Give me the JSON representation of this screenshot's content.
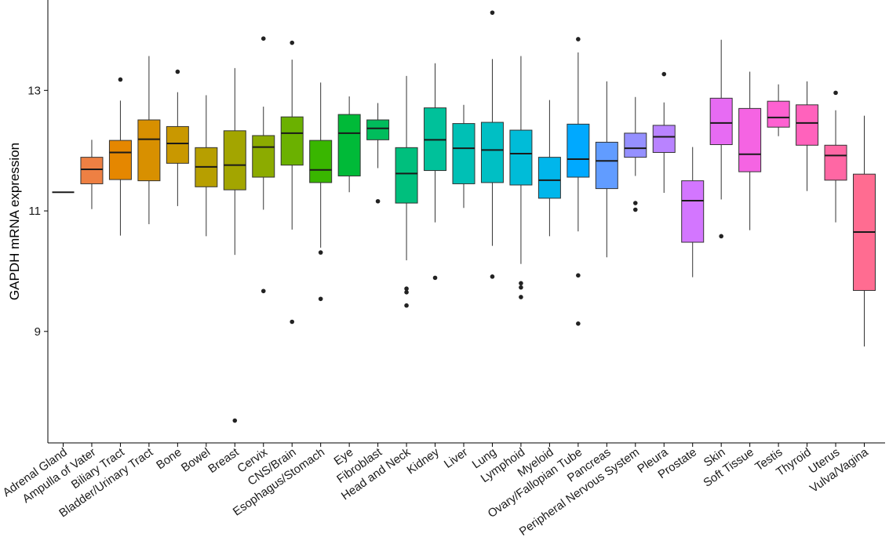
{
  "chart_data": {
    "type": "boxplot",
    "title": "",
    "xlabel": "",
    "ylabel": "GAPDH mRNA expression",
    "ylim": [
      7.15,
      14.5
    ],
    "yticks": [
      9,
      11,
      13
    ],
    "ytick_labels": [
      "9",
      "11",
      "13"
    ],
    "grid": false,
    "legend": "none",
    "categories": [
      "Adrenal Gland",
      "Ampulla of Vater",
      "Biliary Tract",
      "Bladder/Urinary Tract",
      "Bone",
      "Bowel",
      "Breast",
      "Cervix",
      "CNS/Brain",
      "Esophagus/Stomach",
      "Eye",
      "Fibroblast",
      "Head and Neck",
      "Kidney",
      "Liver",
      "Lung",
      "Lymphoid",
      "Myeloid",
      "Ovary/Fallopian Tube",
      "Pancreas",
      "Peripheral Nervous System",
      "Pleura",
      "Prostate",
      "Skin",
      "Soft Tissue",
      "Testis",
      "Thyroid",
      "Uterus",
      "Vulva/Vagina"
    ],
    "colors": [
      "#F8766D",
      "#EE8043",
      "#E58700",
      "#D89000",
      "#C99800",
      "#B79F00",
      "#A3A500",
      "#8CAB00",
      "#6BB100",
      "#39B600",
      "#00BA38",
      "#00BD5C",
      "#00BF7D",
      "#00C19A",
      "#00C0B5",
      "#00BFC4",
      "#00BCD8",
      "#00B6EB",
      "#00A9FF",
      "#619CFF",
      "#9590FF",
      "#B983FF",
      "#D376FF",
      "#E76BF3",
      "#F564E3",
      "#FD61D1",
      "#FF62BC",
      "#FF67A4",
      "#FF6C91"
    ],
    "boxes": [
      {
        "q1": 11.31,
        "median": 11.31,
        "q3": 11.31,
        "whisker_low": 11.31,
        "whisker_high": 11.31,
        "outliers": []
      },
      {
        "q1": 11.45,
        "median": 11.69,
        "q3": 11.89,
        "whisker_low": 11.03,
        "whisker_high": 12.18,
        "outliers": []
      },
      {
        "q1": 11.52,
        "median": 11.97,
        "q3": 12.17,
        "whisker_low": 10.59,
        "whisker_high": 12.83,
        "outliers": [
          13.18
        ]
      },
      {
        "q1": 11.5,
        "median": 12.19,
        "q3": 12.51,
        "whisker_low": 10.78,
        "whisker_high": 13.57,
        "outliers": []
      },
      {
        "q1": 11.79,
        "median": 12.12,
        "q3": 12.4,
        "whisker_low": 11.08,
        "whisker_high": 12.97,
        "outliers": [
          13.31
        ]
      },
      {
        "q1": 11.4,
        "median": 11.73,
        "q3": 12.05,
        "whisker_low": 10.58,
        "whisker_high": 12.92,
        "outliers": []
      },
      {
        "q1": 11.35,
        "median": 11.76,
        "q3": 12.33,
        "whisker_low": 10.27,
        "whisker_high": 13.37,
        "outliers": [
          7.52
        ]
      },
      {
        "q1": 11.56,
        "median": 12.06,
        "q3": 12.25,
        "whisker_low": 11.02,
        "whisker_high": 12.73,
        "outliers": [
          13.86,
          9.67
        ]
      },
      {
        "q1": 11.76,
        "median": 12.29,
        "q3": 12.56,
        "whisker_low": 10.69,
        "whisker_high": 13.51,
        "outliers": [
          13.79,
          9.16
        ]
      },
      {
        "q1": 11.47,
        "median": 11.68,
        "q3": 12.17,
        "whisker_low": 10.39,
        "whisker_high": 13.13,
        "outliers": [
          10.31,
          9.54
        ]
      },
      {
        "q1": 11.58,
        "median": 12.29,
        "q3": 12.6,
        "whisker_low": 11.31,
        "whisker_high": 12.9,
        "outliers": []
      },
      {
        "q1": 12.18,
        "median": 12.37,
        "q3": 12.51,
        "whisker_low": 11.71,
        "whisker_high": 12.79,
        "outliers": [
          11.16
        ]
      },
      {
        "q1": 11.13,
        "median": 11.62,
        "q3": 12.05,
        "whisker_low": 10.18,
        "whisker_high": 13.24,
        "outliers": [
          9.71,
          9.65,
          9.43
        ]
      },
      {
        "q1": 11.67,
        "median": 12.18,
        "q3": 12.71,
        "whisker_low": 10.81,
        "whisker_high": 13.45,
        "outliers": [
          9.89
        ]
      },
      {
        "q1": 11.45,
        "median": 12.04,
        "q3": 12.45,
        "whisker_low": 11.05,
        "whisker_high": 12.76,
        "outliers": []
      },
      {
        "q1": 11.47,
        "median": 12.01,
        "q3": 12.47,
        "whisker_low": 10.42,
        "whisker_high": 13.52,
        "outliers": [
          14.29,
          9.91
        ]
      },
      {
        "q1": 11.43,
        "median": 11.95,
        "q3": 12.34,
        "whisker_low": 10.12,
        "whisker_high": 13.57,
        "outliers": [
          9.8,
          9.73,
          9.57
        ]
      },
      {
        "q1": 11.21,
        "median": 11.51,
        "q3": 11.89,
        "whisker_low": 10.58,
        "whisker_high": 12.84,
        "outliers": []
      },
      {
        "q1": 11.56,
        "median": 11.86,
        "q3": 12.44,
        "whisker_low": 10.66,
        "whisker_high": 13.63,
        "outliers": [
          13.85,
          9.93,
          9.13
        ]
      },
      {
        "q1": 11.37,
        "median": 11.83,
        "q3": 12.14,
        "whisker_low": 10.23,
        "whisker_high": 13.15,
        "outliers": []
      },
      {
        "q1": 11.89,
        "median": 12.04,
        "q3": 12.29,
        "whisker_low": 11.58,
        "whisker_high": 12.89,
        "outliers": [
          11.13,
          11.02
        ]
      },
      {
        "q1": 11.97,
        "median": 12.23,
        "q3": 12.42,
        "whisker_low": 11.3,
        "whisker_high": 12.8,
        "outliers": [
          13.27
        ]
      },
      {
        "q1": 10.48,
        "median": 11.17,
        "q3": 11.5,
        "whisker_low": 9.9,
        "whisker_high": 12.06,
        "outliers": []
      },
      {
        "q1": 12.1,
        "median": 12.46,
        "q3": 12.87,
        "whisker_low": 11.19,
        "whisker_high": 13.84,
        "outliers": [
          10.58
        ]
      },
      {
        "q1": 11.65,
        "median": 11.94,
        "q3": 12.7,
        "whisker_low": 10.68,
        "whisker_high": 13.31,
        "outliers": []
      },
      {
        "q1": 12.39,
        "median": 12.55,
        "q3": 12.82,
        "whisker_low": 12.24,
        "whisker_high": 13.1,
        "outliers": []
      },
      {
        "q1": 12.09,
        "median": 12.46,
        "q3": 12.76,
        "whisker_low": 11.33,
        "whisker_high": 13.15,
        "outliers": []
      },
      {
        "q1": 11.51,
        "median": 11.92,
        "q3": 12.09,
        "whisker_low": 10.81,
        "whisker_high": 12.67,
        "outliers": [
          12.96
        ]
      },
      {
        "q1": 9.68,
        "median": 10.65,
        "q3": 11.61,
        "whisker_low": 8.75,
        "whisker_high": 12.58,
        "outliers": []
      }
    ]
  }
}
